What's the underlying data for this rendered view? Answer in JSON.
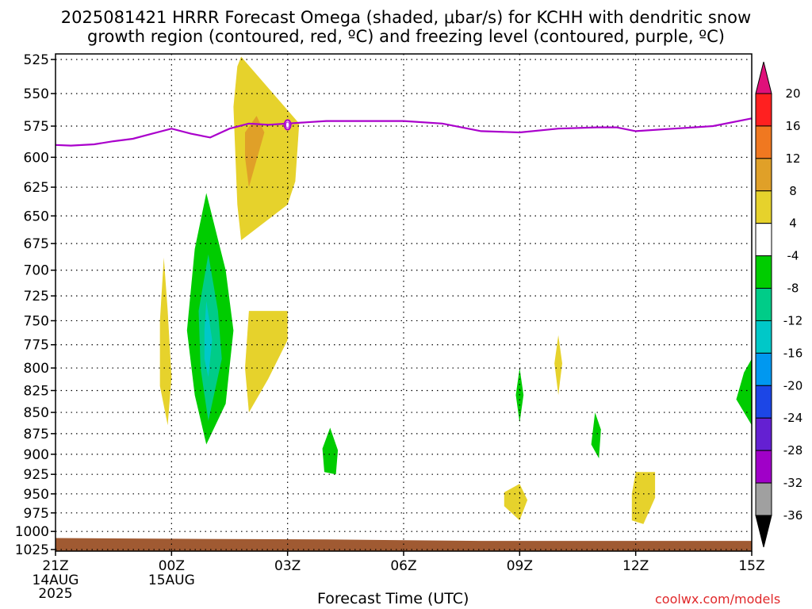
{
  "title": {
    "line1": "2025081421 HRRR Forecast Omega (shaded, μbar/s) for KCHH with dendritic snow",
    "line2": "growth region (contoured, red, ºC) and freezing level (contoured, purple, ºC)"
  },
  "credit": "coolwx.com/models",
  "chart_data": {
    "type": "time-height contour",
    "xlabel": "Forecast Time (UTC)",
    "ylabel": "",
    "x_ticks": [
      {
        "value": 0,
        "label": "21Z",
        "sub1": "14AUG",
        "sub2": "2025"
      },
      {
        "value": 3,
        "label": "00Z",
        "sub1": "15AUG",
        "sub2": ""
      },
      {
        "value": 6,
        "label": "03Z",
        "sub1": "",
        "sub2": ""
      },
      {
        "value": 9,
        "label": "06Z",
        "sub1": "",
        "sub2": ""
      },
      {
        "value": 12,
        "label": "09Z",
        "sub1": "",
        "sub2": ""
      },
      {
        "value": 15,
        "label": "12Z",
        "sub1": "",
        "sub2": ""
      },
      {
        "value": 18,
        "label": "15Z",
        "sub1": "",
        "sub2": ""
      }
    ],
    "xlim": [
      0,
      18
    ],
    "y_ticks": [
      525,
      550,
      575,
      600,
      625,
      650,
      675,
      700,
      725,
      750,
      775,
      800,
      825,
      850,
      875,
      900,
      925,
      950,
      975,
      1000,
      1025
    ],
    "ylim": [
      522,
      1025
    ],
    "y_inverted": true,
    "grid": true,
    "colorbar": {
      "labels": [
        "20",
        "16",
        "12",
        "8",
        "4",
        "-4",
        "-8",
        "-12",
        "-16",
        "-20",
        "-24",
        "-28",
        "-32",
        "-36"
      ],
      "colors": [
        "#ff2020",
        "#f07820",
        "#e0a028",
        "#e6d22c",
        "#ffffff",
        "#00cc00",
        "#00cc88",
        "#00c8c8",
        "#0098f0",
        "#1c46e6",
        "#6420d2",
        "#a000c8",
        "#a0a0a0"
      ],
      "top_arrow_color": "#e0107a",
      "bottom_arrow_color": "#000000"
    },
    "colors": {
      "terrain": "#a05a32",
      "freezing_level": "#aa00cc",
      "warm_4_8": "#e6d22c",
      "warm_8_12": "#e0a028",
      "cool_-4_-8": "#00cc00",
      "cool_-8_-12": "#00cc88",
      "cool_-12_-16": "#00c8c8"
    },
    "freezing_level": [
      [
        0,
        590
      ],
      [
        0.4,
        590.5
      ],
      [
        1,
        589.5
      ],
      [
        1.5,
        587
      ],
      [
        2,
        585
      ],
      [
        2.5,
        581
      ],
      [
        3,
        577
      ],
      [
        3.5,
        581
      ],
      [
        4,
        584
      ],
      [
        4.5,
        577
      ],
      [
        5,
        573
      ],
      [
        5.5,
        574
      ],
      [
        6,
        573
      ],
      [
        6.5,
        572
      ],
      [
        7,
        571
      ],
      [
        8,
        571
      ],
      [
        9,
        571
      ],
      [
        10,
        573
      ],
      [
        11,
        579
      ],
      [
        12,
        580
      ],
      [
        13,
        577
      ],
      [
        14,
        576
      ],
      [
        14.5,
        576
      ],
      [
        15,
        579
      ],
      [
        16,
        577
      ],
      [
        17,
        575
      ],
      [
        18,
        569
      ]
    ],
    "shaded_regions": [
      {
        "level": "warm_4_8",
        "points": [
          [
            4.8,
            523
          ],
          [
            6.3,
            573
          ],
          [
            6.2,
            620
          ],
          [
            6.0,
            640
          ],
          [
            4.8,
            672
          ],
          [
            4.7,
            640
          ],
          [
            4.6,
            560
          ],
          [
            4.7,
            530
          ]
        ]
      },
      {
        "level": "warm_8_12",
        "points": [
          [
            4.9,
            580
          ],
          [
            5.2,
            567
          ],
          [
            5.4,
            580
          ],
          [
            5.0,
            625
          ],
          [
            4.9,
            600
          ]
        ]
      },
      {
        "level": "warm_4_8",
        "points": [
          [
            2.8,
            688
          ],
          [
            2.9,
            740
          ],
          [
            3.0,
            810
          ],
          [
            2.9,
            865
          ],
          [
            2.7,
            820
          ],
          [
            2.7,
            750
          ]
        ]
      },
      {
        "level": "cool_-4_-8",
        "points": [
          [
            3.9,
            630
          ],
          [
            4.4,
            700
          ],
          [
            4.6,
            760
          ],
          [
            4.4,
            840
          ],
          [
            3.9,
            888
          ],
          [
            3.6,
            830
          ],
          [
            3.4,
            760
          ],
          [
            3.6,
            680
          ]
        ]
      },
      {
        "level": "cool_-8_-12",
        "points": [
          [
            3.95,
            685
          ],
          [
            4.2,
            740
          ],
          [
            4.3,
            790
          ],
          [
            3.95,
            860
          ],
          [
            3.75,
            800
          ],
          [
            3.7,
            740
          ]
        ]
      },
      {
        "level": "cool_-12_-16",
        "points": [
          [
            3.9,
            730
          ],
          [
            4.05,
            770
          ],
          [
            3.95,
            810
          ],
          [
            3.85,
            790
          ],
          [
            3.85,
            760
          ]
        ]
      },
      {
        "level": "warm_4_8",
        "points": [
          [
            5.0,
            740
          ],
          [
            6.0,
            740
          ],
          [
            6.0,
            770
          ],
          [
            5.5,
            812
          ],
          [
            5.0,
            850
          ],
          [
            4.9,
            800
          ]
        ]
      },
      {
        "level": "cool_-4_-8",
        "points": [
          [
            7.1,
            868
          ],
          [
            7.3,
            895
          ],
          [
            7.25,
            925
          ],
          [
            6.95,
            922
          ],
          [
            6.9,
            893
          ]
        ]
      },
      {
        "level": "cool_-4_-8",
        "points": [
          [
            12.0,
            800
          ],
          [
            12.1,
            830
          ],
          [
            12.0,
            862
          ],
          [
            11.9,
            830
          ]
        ]
      },
      {
        "level": "warm_4_8",
        "points": [
          [
            12.0,
            937
          ],
          [
            12.2,
            958
          ],
          [
            12.0,
            985
          ],
          [
            11.6,
            966
          ],
          [
            11.6,
            948
          ]
        ]
      },
      {
        "level": "warm_4_8",
        "points": [
          [
            13.0,
            765
          ],
          [
            13.1,
            795
          ],
          [
            13.0,
            830
          ],
          [
            12.9,
            795
          ]
        ]
      },
      {
        "level": "cool_-4_-8",
        "points": [
          [
            13.95,
            850
          ],
          [
            14.1,
            870
          ],
          [
            14.05,
            905
          ],
          [
            13.85,
            888
          ]
        ]
      },
      {
        "level": "warm_4_8",
        "points": [
          [
            15.0,
            922
          ],
          [
            15.5,
            922
          ],
          [
            15.5,
            955
          ],
          [
            15.2,
            990
          ],
          [
            14.9,
            985
          ],
          [
            14.9,
            950
          ]
        ]
      },
      {
        "level": "cool_-4_-8",
        "points": [
          [
            18,
            790
          ],
          [
            18,
            865
          ],
          [
            17.6,
            835
          ],
          [
            17.8,
            805
          ]
        ]
      }
    ],
    "terrain_top": [
      [
        0,
        1009
      ],
      [
        3,
        1010
      ],
      [
        7,
        1011
      ],
      [
        9,
        1012
      ],
      [
        11,
        1013
      ],
      [
        18,
        1013
      ]
    ],
    "annotation": {
      "label": "0",
      "x": 6.0,
      "y": 574
    }
  }
}
